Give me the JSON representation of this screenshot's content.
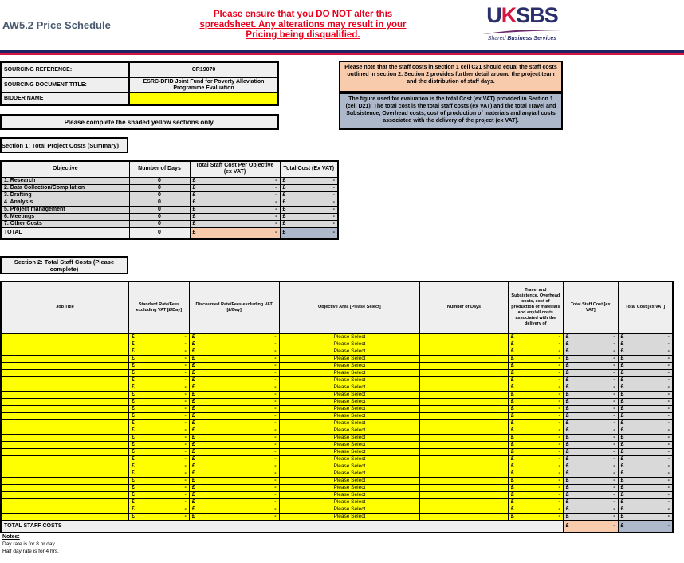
{
  "header": {
    "title": "AW5.2 Price Schedule",
    "warning": "Please ensure that you DO NOT alter this spreadsheet. Any alterations may result in your Pricing being disqualified.",
    "logo_text": "UKSBS",
    "logo_sub": "Shared Business Services"
  },
  "info": {
    "ref_label": "SOURCING REFERENCE:",
    "ref_value": "CR19070",
    "title_label": "SOURCING DOCUMENT TITLE:",
    "title_value": "ESRC-DFID Joint Fund for Poverty Alleviation Programme Evaluation",
    "bidder_label": "BIDDER NAME",
    "bidder_value": "",
    "instruction": "Please complete the shaded yellow sections only."
  },
  "notes": {
    "note1": "Please note that the staff costs in section 1 cell C21 should equal the staff costs outlined in section 2.  Section 2 provides further detail around the project team and the distribution of staff days.",
    "note2": "The figure used for evaluation is the total Cost (ex VAT) provided in Section 1 (cell D21).  The total cost is the total staff costs (ex VAT) and the total Travel and Subsistence, Overhead costs, cost of production of materials and any/all costs associated with the delivery of the project (ex VAT)."
  },
  "section1": {
    "title": "Section 1: Total Project Costs (Summary)",
    "headers": [
      "Objective",
      "Number of Days",
      "Total Staff Cost Per Objective (ex VAT)",
      "Total Cost (Ex VAT)"
    ],
    "rows": [
      {
        "objective": "1.  Research",
        "days": "0"
      },
      {
        "objective": "2.  Data Collection/Compilation",
        "days": "0"
      },
      {
        "objective": "3.  Drafting",
        "days": "0"
      },
      {
        "objective": "4.  Analysis",
        "days": "0"
      },
      {
        "objective": "5.  Project management",
        "days": "0"
      },
      {
        "objective": "6.  Meetings",
        "days": "0"
      },
      {
        "objective": "7.  Other Costs",
        "days": "0"
      }
    ],
    "total_label": "TOTAL",
    "total_days": "0",
    "currency": "£",
    "dash": "-"
  },
  "section2": {
    "title": "Section 2: Total Staff Costs (Please complete)",
    "headers": [
      "Job Title",
      "Standard Rate/Fees excluding VAT [£/Day]",
      "Discounted Rate/Fees excluding VAT [£/Day]",
      "Objective Area [Please Select]",
      "Number of Days",
      "Travel and Subsistence, Overhead costs, cost of production of materials and any/all costs associated with the delivery of",
      "Total Staff Cost [ex VAT]",
      "Total Cost [ex VAT]"
    ],
    "row_count": 26,
    "select_placeholder": "Please Select",
    "total_label": "TOTAL STAFF COSTS"
  },
  "footer": {
    "notes_title": "Notes:",
    "lines": [
      "Day rate is for 8 hr day.",
      "Half day rate is for 4 hrs."
    ]
  },
  "colors": {
    "yellow": "#ffff00",
    "grey": "#d9d9d9",
    "peach": "#f8cbad",
    "blue": "#adb9ca",
    "warning": "#e8001c",
    "navy": "#1f2466"
  }
}
